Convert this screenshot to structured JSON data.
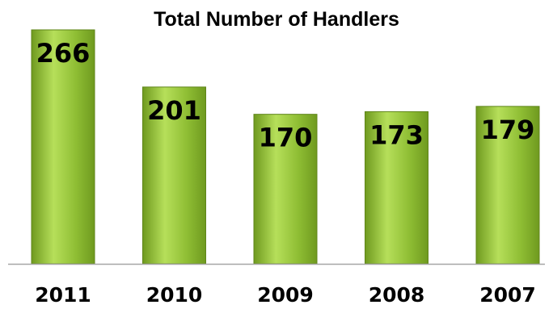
{
  "chart_data": {
    "type": "bar",
    "title": "Total Number of Handlers",
    "categories": [
      "2011",
      "2010",
      "2009",
      "2008",
      "2007"
    ],
    "values": [
      266,
      201,
      170,
      173,
      179
    ],
    "xlabel": "",
    "ylabel": "",
    "ylim": [
      0,
      266
    ],
    "grid": false,
    "legend": "none",
    "data_labels": true,
    "colors": {
      "bar_top": "#b6df5a",
      "bar_mid": "#8fbe34",
      "bar_bottom": "#6f9a1f",
      "bar_edge": "#5f8519",
      "axis": "#a6a6a6"
    }
  }
}
